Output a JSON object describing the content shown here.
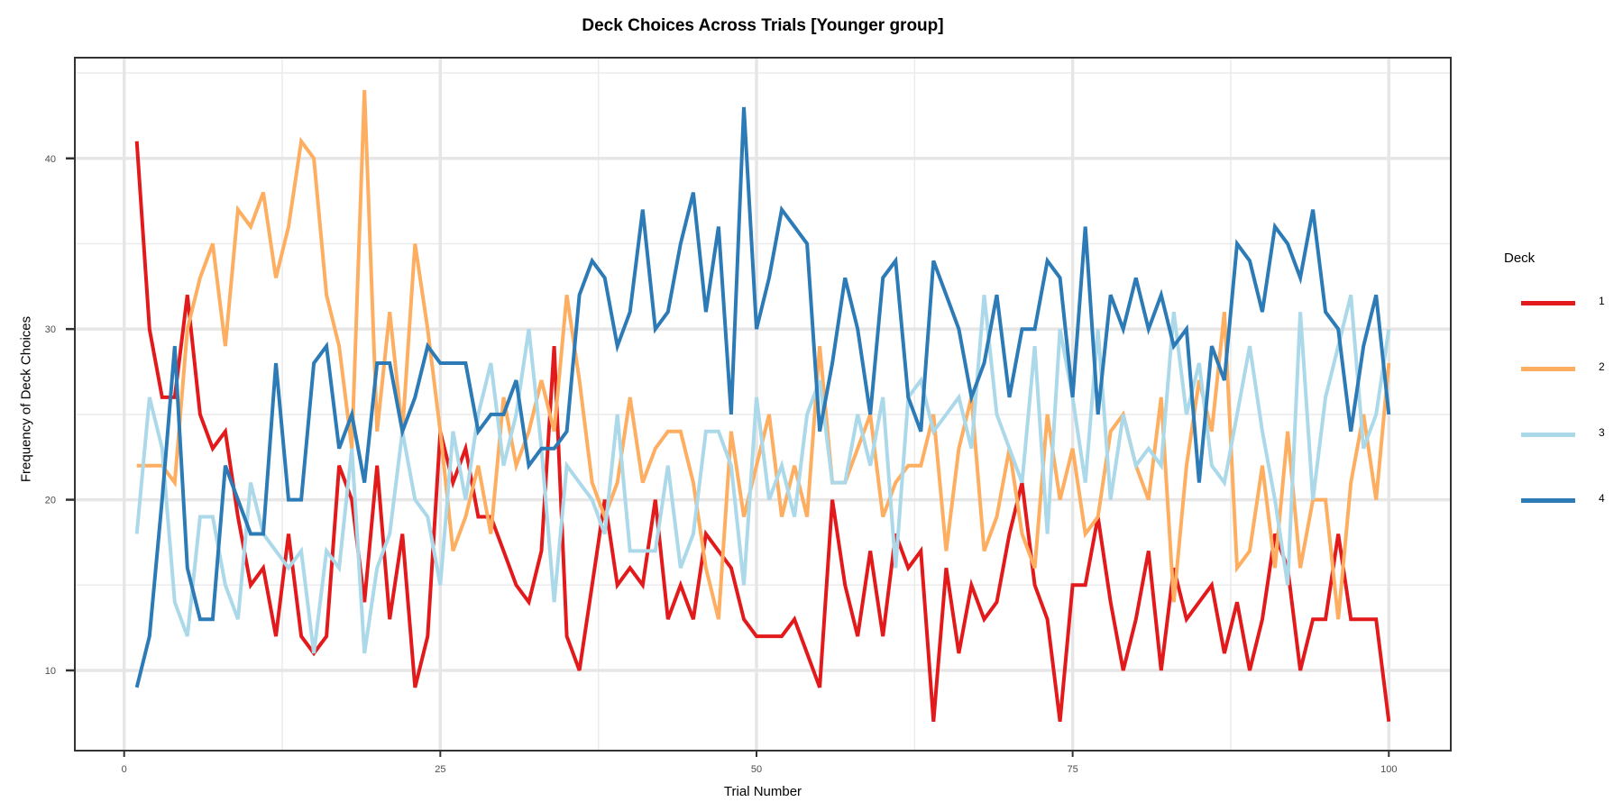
{
  "chart_data": {
    "type": "line",
    "title": "Deck Choices Across Trials [Younger group]",
    "xlabel": "Trial Number",
    "ylabel": "Frequency of Deck Choices",
    "xlim": [
      -3.9,
      104.9
    ],
    "ylim": [
      5.3,
      45.9
    ],
    "xticks": [
      0,
      25,
      50,
      75,
      100
    ],
    "yticks": [
      10,
      20,
      30,
      40
    ],
    "grid": true,
    "legend": {
      "title": "Deck",
      "position": "right"
    },
    "x": [
      1,
      2,
      3,
      4,
      5,
      6,
      7,
      8,
      9,
      10,
      11,
      12,
      13,
      14,
      15,
      16,
      17,
      18,
      19,
      20,
      21,
      22,
      23,
      24,
      25,
      26,
      27,
      28,
      29,
      30,
      31,
      32,
      33,
      34,
      35,
      36,
      37,
      38,
      39,
      40,
      41,
      42,
      43,
      44,
      45,
      46,
      47,
      48,
      49,
      50,
      51,
      52,
      53,
      54,
      55,
      56,
      57,
      58,
      59,
      60,
      61,
      62,
      63,
      64,
      65,
      66,
      67,
      68,
      69,
      70,
      71,
      72,
      73,
      74,
      75,
      76,
      77,
      78,
      79,
      80,
      81,
      82,
      83,
      84,
      85,
      86,
      87,
      88,
      89,
      90,
      91,
      92,
      93,
      94,
      95,
      96,
      97,
      98,
      99,
      100
    ],
    "series": [
      {
        "name": "1",
        "color": "#e31a1c",
        "values": [
          41,
          30,
          26,
          26,
          32,
          25,
          23,
          24,
          19,
          15,
          16,
          12,
          18,
          12,
          11,
          12,
          22,
          20,
          14,
          22,
          13,
          18,
          9,
          12,
          24,
          21,
          23,
          19,
          19,
          17,
          15,
          14,
          17,
          29,
          12,
          10,
          15,
          20,
          15,
          16,
          15,
          20,
          13,
          15,
          13,
          18,
          17,
          16,
          13,
          12,
          12,
          12,
          13,
          11,
          9,
          20,
          15,
          12,
          17,
          12,
          18,
          16,
          17,
          7,
          16,
          11,
          15,
          13,
          14,
          18,
          21,
          15,
          13,
          7,
          15,
          15,
          19,
          14,
          10,
          13,
          17,
          10,
          16,
          13,
          14,
          15,
          11,
          14,
          10,
          13,
          18,
          16,
          10,
          13,
          13,
          18,
          13,
          13,
          13,
          7
        ]
      },
      {
        "name": "2",
        "color": "#fdae61",
        "values": [
          22,
          22,
          22,
          21,
          30,
          33,
          35,
          29,
          37,
          36,
          38,
          33,
          36,
          41,
          40,
          32,
          29,
          23,
          44,
          24,
          31,
          24,
          35,
          30,
          24,
          17,
          19,
          22,
          18,
          26,
          22,
          24,
          27,
          24,
          32,
          27,
          21,
          19,
          21,
          26,
          21,
          23,
          24,
          24,
          21,
          16,
          13,
          24,
          19,
          22,
          25,
          19,
          22,
          19,
          29,
          21,
          21,
          23,
          25,
          19,
          21,
          22,
          22,
          25,
          17,
          23,
          26,
          17,
          19,
          23,
          18,
          16,
          25,
          20,
          23,
          18,
          19,
          24,
          25,
          22,
          20,
          26,
          14,
          22,
          27,
          24,
          31,
          16,
          17,
          22,
          16,
          24,
          16,
          20,
          20,
          13,
          21,
          25,
          20,
          28
        ]
      },
      {
        "name": "3",
        "color": "#abd9e9",
        "values": [
          18,
          26,
          23,
          14,
          12,
          19,
          19,
          15,
          13,
          21,
          18,
          17,
          16,
          17,
          11,
          17,
          16,
          23,
          11,
          16,
          18,
          24,
          20,
          19,
          15,
          24,
          20,
          25,
          28,
          22,
          25,
          30,
          23,
          14,
          22,
          21,
          20,
          18,
          25,
          17,
          17,
          17,
          22,
          16,
          18,
          24,
          24,
          22,
          15,
          26,
          20,
          22,
          19,
          25,
          27,
          21,
          21,
          25,
          22,
          26,
          16,
          26,
          27,
          24,
          25,
          26,
          23,
          32,
          25,
          23,
          21,
          29,
          18,
          30,
          26,
          21,
          30,
          20,
          25,
          22,
          23,
          22,
          31,
          25,
          28,
          22,
          21,
          25,
          29,
          24,
          20,
          15,
          31,
          20,
          26,
          29,
          32,
          23,
          25,
          30
        ]
      },
      {
        "name": "4",
        "color": "#2c7bb6",
        "values": [
          9,
          12,
          20,
          29,
          16,
          13,
          13,
          22,
          20,
          18,
          18,
          28,
          20,
          20,
          28,
          29,
          23,
          25,
          21,
          28,
          28,
          24,
          26,
          29,
          28,
          28,
          28,
          24,
          25,
          25,
          27,
          22,
          23,
          23,
          24,
          32,
          34,
          33,
          29,
          31,
          37,
          30,
          31,
          35,
          38,
          31,
          36,
          25,
          43,
          30,
          33,
          37,
          36,
          35,
          24,
          28,
          33,
          30,
          25,
          33,
          34,
          26,
          24,
          34,
          32,
          30,
          26,
          28,
          32,
          26,
          30,
          30,
          34,
          33,
          26,
          36,
          25,
          32,
          30,
          33,
          30,
          32,
          29,
          30,
          21,
          29,
          27,
          35,
          34,
          31,
          36,
          35,
          33,
          37,
          31,
          30,
          24,
          29,
          32,
          25
        ]
      }
    ]
  }
}
